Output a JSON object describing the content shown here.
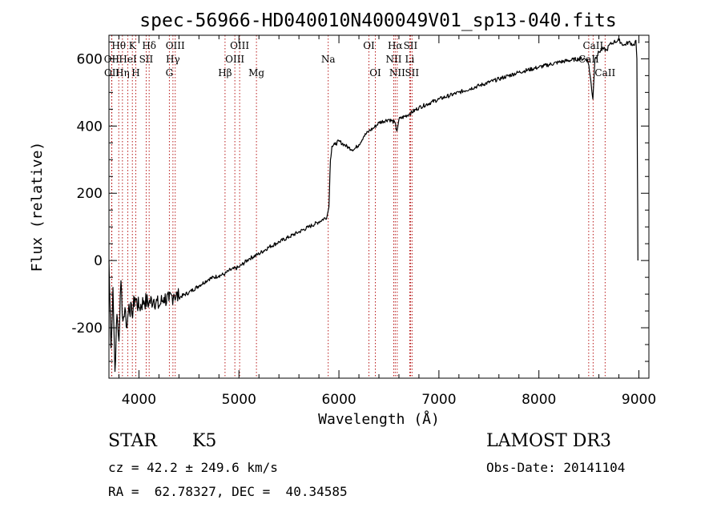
{
  "chart_data": {
    "type": "line",
    "title": "spec-56966-HD040010N400049V01_sp13-040.fits",
    "xlabel": "Wavelength (Å)",
    "ylabel": "Flux (relative)",
    "xlim": [
      3700,
      9100
    ],
    "ylim": [
      -350,
      670
    ],
    "xticks": [
      4000,
      5000,
      6000,
      7000,
      8000,
      9000
    ],
    "yticks": [
      -200,
      0,
      200,
      400,
      600
    ],
    "series": [
      {
        "name": "spectrum",
        "x": [
          3700,
          3720,
          3740,
          3760,
          3780,
          3800,
          3820,
          3840,
          3860,
          3880,
          3900,
          3930,
          3960,
          4000,
          4050,
          4100,
          4150,
          4200,
          4250,
          4300,
          4350,
          4400,
          4500,
          4600,
          4700,
          4800,
          4860,
          4900,
          5000,
          5100,
          5200,
          5300,
          5400,
          5500,
          5600,
          5700,
          5800,
          5880,
          5900,
          5915,
          5930,
          5960,
          6000,
          6050,
          6100,
          6150,
          6200,
          6250,
          6300,
          6350,
          6400,
          6500,
          6560,
          6580,
          6600,
          6700,
          6800,
          7000,
          7200,
          7400,
          7600,
          7800,
          8000,
          8200,
          8400,
          8480,
          8500,
          8540,
          8560,
          8600,
          8640,
          8680,
          8700,
          8750,
          8800,
          8850,
          8900,
          8950,
          8970,
          8980,
          8985,
          8990
        ],
        "y": [
          0,
          -260,
          -80,
          -330,
          -160,
          -240,
          -60,
          -180,
          -140,
          -200,
          -130,
          -160,
          -110,
          -140,
          -120,
          -125,
          -115,
          -135,
          -110,
          -120,
          -100,
          -110,
          -95,
          -75,
          -55,
          -45,
          -40,
          -30,
          -20,
          5,
          20,
          40,
          55,
          70,
          85,
          100,
          115,
          130,
          160,
          300,
          340,
          345,
          355,
          345,
          335,
          330,
          345,
          370,
          385,
          395,
          410,
          420,
          410,
          385,
          420,
          435,
          455,
          480,
          500,
          520,
          540,
          560,
          575,
          590,
          600,
          600,
          580,
          480,
          600,
          620,
          630,
          625,
          640,
          650,
          655,
          640,
          650,
          640,
          655,
          600,
          300,
          0
        ]
      }
    ],
    "lines": [
      {
        "label": "Hθ",
        "wl": 3798,
        "row": 0
      },
      {
        "label": "OII",
        "wl": 3727,
        "row": 1
      },
      {
        "label": "OII",
        "wl": 3729,
        "row": 2
      },
      {
        "label": "Hη",
        "wl": 3835,
        "row": 2
      },
      {
        "label": "HeI",
        "wl": 3889,
        "row": 1
      },
      {
        "label": "K",
        "wl": 3934,
        "row": 0
      },
      {
        "label": "H",
        "wl": 3968,
        "row": 2
      },
      {
        "label": "SII",
        "wl": 4072,
        "row": 1
      },
      {
        "label": "Hδ",
        "wl": 4102,
        "row": 0
      },
      {
        "label": "G",
        "wl": 4304,
        "row": 2
      },
      {
        "label": "OIII",
        "wl": 4363,
        "row": 0
      },
      {
        "label": "Hγ",
        "wl": 4340,
        "row": 1
      },
      {
        "label": "Hβ",
        "wl": 4861,
        "row": 2
      },
      {
        "label": "OIII",
        "wl": 4959,
        "row": 1
      },
      {
        "label": "OIII",
        "wl": 5007,
        "row": 0
      },
      {
        "label": "Mg",
        "wl": 5175,
        "row": 2
      },
      {
        "label": "Na",
        "wl": 5893,
        "row": 1
      },
      {
        "label": "OI",
        "wl": 6300,
        "row": 0
      },
      {
        "label": "OI",
        "wl": 6364,
        "row": 2
      },
      {
        "label": "NII",
        "wl": 6548,
        "row": 1
      },
      {
        "label": "Hα",
        "wl": 6563,
        "row": 0
      },
      {
        "label": "NII",
        "wl": 6583,
        "row": 2
      },
      {
        "label": "Li",
        "wl": 6708,
        "row": 1
      },
      {
        "label": "SII",
        "wl": 6716,
        "row": 0
      },
      {
        "label": "SII",
        "wl": 6731,
        "row": 2
      },
      {
        "label": "CaII",
        "wl": 8498,
        "row": 1
      },
      {
        "label": "CaII",
        "wl": 8542,
        "row": 0
      },
      {
        "label": "CaII",
        "wl": 8662,
        "row": 2
      }
    ]
  },
  "info": {
    "object_type": "STAR",
    "subclass": "K5",
    "survey": "LAMOST DR3",
    "redshift": "cz = 42.2 ± 249.6 km/s",
    "obs_date": "Obs-Date: 20141104",
    "coords": "RA =  62.78327, DEC =  40.34585"
  }
}
